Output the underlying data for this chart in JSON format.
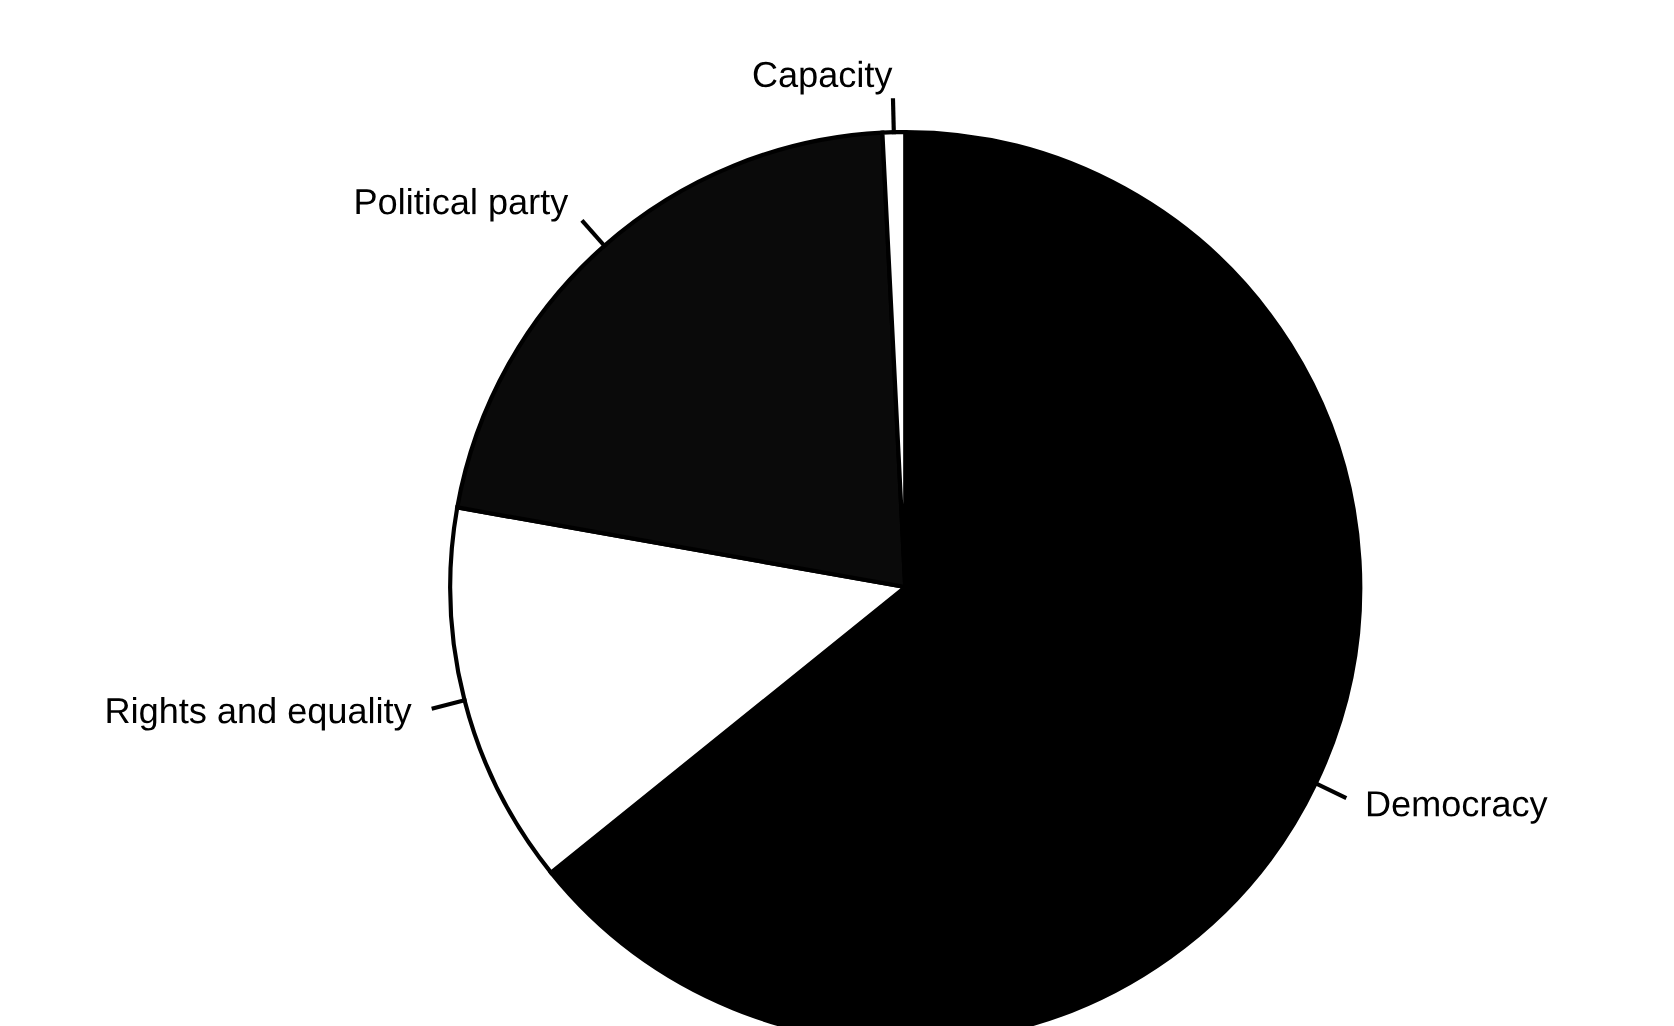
{
  "chart_data": {
    "type": "pie",
    "categories": [
      "Democracy",
      "Rights and equality",
      "Political party",
      "Capacity"
    ],
    "values": [
      64.2,
      13.6,
      21.4,
      0.8
    ],
    "colors": [
      "#000000",
      "#ffffff",
      "#0a0a0a",
      "#ffffff"
    ]
  }
}
